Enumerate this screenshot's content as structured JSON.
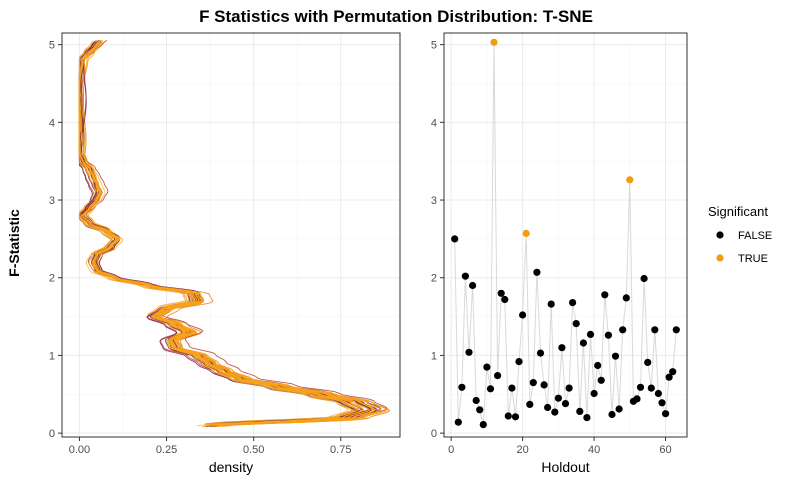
{
  "title": "F Statistics with Permutation Distribution: T-SNE",
  "y_label": "F-Statistic",
  "legend": {
    "title": "Significant",
    "placement": "right",
    "entries": [
      {
        "label": "FALSE",
        "color": "#000000"
      },
      {
        "label": "TRUE",
        "color": "#f39c12"
      }
    ]
  },
  "colors": {
    "panel_border": "#333333",
    "grid_major": "#ebebeb",
    "grid_minor": "#f4f4f4",
    "tick_text": "#4d4d4d",
    "connector_line": "#d9d9d9",
    "density_palette": [
      "#f7a21a",
      "#f3b33a",
      "#e67e22",
      "#c0392b",
      "#7b1e4a",
      "#3d1a5b"
    ]
  },
  "chart_data": [
    {
      "type": "area",
      "name": "permutation-density",
      "xlabel": "density",
      "ylabel": "F-Statistic",
      "xlim": [
        -0.05,
        0.92
      ],
      "ylim": [
        -0.05,
        5.15
      ],
      "x_ticks": [
        "0.00",
        "0.25",
        "0.50",
        "0.75"
      ],
      "x_tick_values": [
        0,
        0.25,
        0.5,
        0.75
      ],
      "y_ticks": [
        "0",
        "1",
        "2",
        "3",
        "4",
        "5"
      ],
      "y_tick_values": [
        0,
        1,
        2,
        3,
        4,
        5
      ],
      "grid": true,
      "n_curves": 36,
      "density_profile": {
        "y": [
          0.1,
          0.2,
          0.3,
          0.4,
          0.5,
          0.6,
          0.7,
          0.8,
          0.9,
          1.0,
          1.1,
          1.2,
          1.3,
          1.4,
          1.5,
          1.6,
          1.7,
          1.8,
          1.9,
          2.0,
          2.1,
          2.2,
          2.3,
          2.4,
          2.5,
          2.6,
          2.7,
          2.8,
          2.9,
          3.0,
          3.1,
          3.2,
          3.3,
          3.4,
          3.5,
          3.6,
          4.0,
          4.5,
          4.8,
          4.9,
          5.0,
          5.05
        ],
        "center": [
          0.38,
          0.78,
          0.84,
          0.8,
          0.7,
          0.58,
          0.47,
          0.42,
          0.38,
          0.35,
          0.28,
          0.27,
          0.32,
          0.28,
          0.22,
          0.25,
          0.34,
          0.33,
          0.2,
          0.1,
          0.05,
          0.04,
          0.05,
          0.09,
          0.11,
          0.08,
          0.03,
          0.01,
          0.03,
          0.05,
          0.06,
          0.05,
          0.04,
          0.03,
          0.01,
          0.0,
          0.0,
          0.0,
          0.01,
          0.03,
          0.05,
          0.06
        ]
      }
    },
    {
      "type": "scatter",
      "name": "f-by-holdout",
      "xlabel": "Holdout",
      "ylabel": "",
      "xlim": [
        -2,
        66
      ],
      "ylim": [
        -0.05,
        5.15
      ],
      "x_ticks": [
        "0",
        "20",
        "40",
        "60"
      ],
      "x_tick_values": [
        0,
        20,
        40,
        60
      ],
      "y_ticks": [
        "0",
        "1",
        "2",
        "3",
        "4",
        "5"
      ],
      "y_tick_values": [
        0,
        1,
        2,
        3,
        4,
        5
      ],
      "grid": true,
      "connect_points": true,
      "x": [
        1,
        2,
        3,
        4,
        5,
        6,
        7,
        8,
        9,
        10,
        11,
        12,
        13,
        14,
        15,
        16,
        17,
        18,
        19,
        20,
        21,
        22,
        23,
        24,
        25,
        26,
        27,
        28,
        29,
        30,
        31,
        32,
        33,
        34,
        35,
        36,
        37,
        38,
        39,
        40,
        41,
        42,
        43,
        44,
        45,
        46,
        47,
        48,
        49,
        50,
        51,
        52,
        53,
        54,
        55,
        56,
        57,
        58,
        59,
        60,
        61,
        62,
        63
      ],
      "y": [
        2.5,
        0.14,
        0.59,
        2.02,
        1.04,
        1.9,
        0.42,
        0.3,
        0.11,
        0.85,
        0.57,
        5.03,
        0.74,
        1.8,
        1.72,
        0.22,
        0.58,
        0.21,
        0.92,
        1.52,
        2.57,
        0.37,
        0.65,
        2.07,
        1.03,
        0.62,
        0.33,
        1.66,
        0.27,
        0.45,
        1.1,
        0.38,
        0.58,
        1.68,
        1.41,
        0.28,
        1.16,
        0.2,
        1.27,
        0.51,
        0.87,
        0.68,
        1.78,
        1.26,
        0.24,
        0.99,
        0.31,
        1.33,
        1.74,
        3.26,
        0.41,
        0.44,
        0.59,
        1.99,
        0.91,
        0.58,
        1.33,
        0.51,
        0.39,
        0.25,
        0.72,
        0.79,
        1.33
      ],
      "significant": [
        false,
        false,
        false,
        false,
        false,
        false,
        false,
        false,
        false,
        false,
        false,
        true,
        false,
        false,
        false,
        false,
        false,
        false,
        false,
        false,
        true,
        false,
        false,
        false,
        false,
        false,
        false,
        false,
        false,
        false,
        false,
        false,
        false,
        false,
        false,
        false,
        false,
        false,
        false,
        false,
        false,
        false,
        false,
        false,
        false,
        false,
        false,
        false,
        false,
        true,
        false,
        false,
        false,
        false,
        false,
        false,
        false,
        false,
        false,
        false,
        false,
        false,
        false
      ]
    }
  ]
}
